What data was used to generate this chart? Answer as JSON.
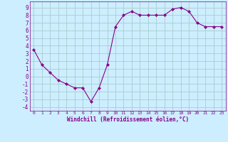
{
  "x": [
    0,
    1,
    2,
    3,
    4,
    5,
    6,
    7,
    8,
    9,
    10,
    11,
    12,
    13,
    14,
    15,
    16,
    17,
    18,
    19,
    20,
    21,
    22,
    23
  ],
  "y": [
    3.5,
    1.5,
    0.5,
    -0.5,
    -1.0,
    -1.5,
    -1.5,
    -3.3,
    -1.5,
    1.5,
    6.5,
    8.0,
    8.5,
    8.0,
    8.0,
    8.0,
    8.0,
    8.8,
    9.0,
    8.5,
    7.0,
    6.5,
    6.5,
    6.5
  ],
  "line_color": "#880088",
  "marker": "D",
  "marker_size": 2.0,
  "bg_color": "#cceeff",
  "grid_color": "#aacccc",
  "xlabel": "Windchill (Refroidissement éolien,°C)",
  "xlabel_color": "#880088",
  "tick_color": "#880088",
  "ylim": [
    -4.5,
    9.8
  ],
  "xlim": [
    -0.5,
    23.5
  ],
  "yticks": [
    -4,
    -3,
    -2,
    -1,
    0,
    1,
    2,
    3,
    4,
    5,
    6,
    7,
    8,
    9
  ],
  "xticks": [
    0,
    1,
    2,
    3,
    4,
    5,
    6,
    7,
    8,
    9,
    10,
    11,
    12,
    13,
    14,
    15,
    16,
    17,
    18,
    19,
    20,
    21,
    22,
    23
  ]
}
